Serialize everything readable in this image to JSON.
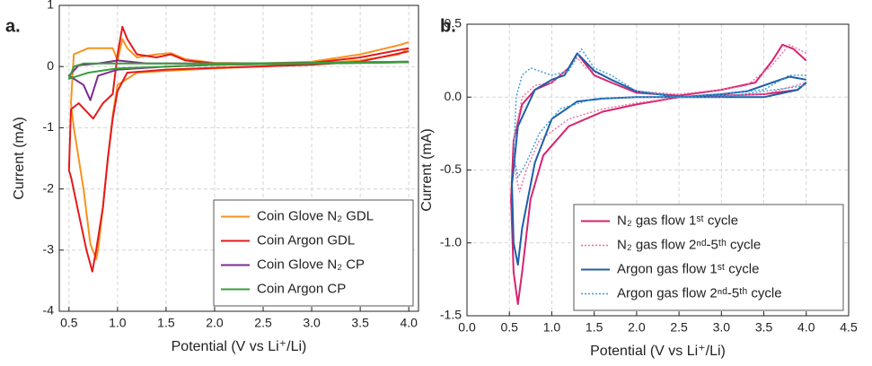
{
  "chart_data": [
    {
      "type": "line",
      "label": "a.",
      "xlabel": "Potential (V vs Li⁺/Li)",
      "ylabel": "Current (mA)",
      "xlim": [
        0.4,
        4.1
      ],
      "ylim": [
        -4,
        1
      ],
      "xticks": [
        0.5,
        {
          "value": 1,
          "label": "1.0"
        },
        1.5,
        {
          "value": 2,
          "label": "2.0"
        },
        2.5,
        {
          "value": 3,
          "label": "3.0"
        },
        3.5,
        {
          "value": 4,
          "label": "4.0"
        }
      ],
      "yticks": [
        1,
        0,
        -1,
        -2,
        -3,
        -4
      ],
      "grid": true,
      "legend": "lower right",
      "series": [
        {
          "name": "Coin Glove N₂ GDL",
          "color": "#f7931e",
          "x": [
            4.0,
            3.9,
            3.5,
            3.0,
            2.5,
            2.0,
            1.5,
            1.2,
            1.0,
            0.95,
            0.9,
            0.85,
            0.8,
            0.78,
            0.72,
            0.65,
            0.55,
            0.52,
            0.55,
            0.7,
            0.85,
            0.95,
            1.0,
            1.05,
            1.1,
            1.2,
            1.4,
            1.55,
            1.7,
            2.0,
            2.5,
            3.0,
            3.5,
            3.9,
            4.0
          ],
          "values": [
            0.3,
            0.2,
            0.1,
            0.05,
            0.0,
            -0.03,
            -0.07,
            -0.1,
            -0.3,
            -0.8,
            -1.5,
            -2.3,
            -3.0,
            -3.15,
            -2.9,
            -2.0,
            -1.0,
            -0.6,
            0.2,
            0.3,
            0.3,
            0.3,
            0.1,
            0.45,
            0.3,
            0.15,
            0.2,
            0.22,
            0.12,
            0.06,
            0.05,
            0.08,
            0.2,
            0.35,
            0.4
          ]
        },
        {
          "name": "Coin Argon  GDL",
          "color": "#e31a1c",
          "x": [
            4.0,
            3.5,
            3.0,
            2.0,
            1.5,
            1.1,
            1.0,
            0.95,
            0.9,
            0.85,
            0.78,
            0.74,
            0.68,
            0.6,
            0.52,
            0.5,
            0.52,
            0.6,
            0.75,
            0.85,
            0.95,
            1.0,
            1.05,
            1.1,
            1.2,
            1.4,
            1.55,
            1.7,
            2.0,
            3.0,
            3.5,
            4.0
          ],
          "values": [
            0.25,
            0.08,
            0.03,
            -0.02,
            -0.05,
            -0.1,
            -0.4,
            -0.85,
            -1.5,
            -2.3,
            -3.0,
            -3.35,
            -3.0,
            -2.4,
            -1.8,
            -1.7,
            -0.7,
            -0.6,
            -0.85,
            -0.6,
            -0.45,
            0.2,
            0.65,
            0.45,
            0.2,
            0.15,
            0.2,
            0.1,
            0.05,
            0.06,
            0.15,
            0.3
          ]
        },
        {
          "name": "Coin Glove N₂ CP",
          "color": "#7b2d8e",
          "x": [
            4.0,
            3.0,
            2.0,
            1.5,
            1.0,
            0.8,
            0.72,
            0.65,
            0.5,
            0.6,
            0.8,
            1.0,
            1.3,
            2.0,
            3.0,
            4.0
          ],
          "values": [
            0.07,
            0.05,
            0.03,
            0.0,
            -0.05,
            -0.15,
            -0.55,
            -0.3,
            -0.15,
            0.02,
            0.05,
            0.1,
            0.05,
            0.05,
            0.06,
            0.08
          ]
        },
        {
          "name": "Coin Argon CP",
          "color": "#3b9c3b",
          "x": [
            4.0,
            3.0,
            2.0,
            1.0,
            0.7,
            0.6,
            0.5,
            0.55,
            0.65,
            1.0,
            2.0,
            3.0,
            4.0
          ],
          "values": [
            0.07,
            0.05,
            0.03,
            -0.03,
            -0.1,
            -0.15,
            -0.2,
            0.0,
            0.05,
            0.05,
            0.05,
            0.06,
            0.08
          ]
        }
      ]
    },
    {
      "type": "line",
      "label": "b.",
      "xlabel": "Potential (V vs Li⁺/Li)",
      "ylabel": "Current (mA)",
      "xlim": [
        0,
        4.5
      ],
      "ylim": [
        -1.5,
        0.5
      ],
      "xticks": [
        {
          "value": 0,
          "label": "0.0"
        },
        0.5,
        {
          "value": 1,
          "label": "1.0"
        },
        1.5,
        {
          "value": 2,
          "label": "2.0"
        },
        2.5,
        {
          "value": 3,
          "label": "3.0"
        },
        3.5,
        {
          "value": 4,
          "label": "4.0"
        },
        4.5
      ],
      "yticks": [
        {
          "value": -1.5,
          "label": "-1.5"
        },
        {
          "value": -1,
          "label": "-1.0"
        },
        -0.5,
        {
          "value": 0,
          "label": "0.0"
        },
        0.5
      ],
      "grid": true,
      "legend": "lower right",
      "series": [
        {
          "name": "N₂ gas flow 1ˢᵗ cycle",
          "color": "#d6246e",
          "dash": "solid",
          "x": [
            4.0,
            3.85,
            3.72,
            3.6,
            3.4,
            3.0,
            2.5,
            2.0,
            1.7,
            1.5,
            1.3,
            1.2,
            1.0,
            0.8,
            0.65,
            0.55,
            0.52,
            0.55,
            0.6,
            0.65,
            0.75,
            0.9,
            1.2,
            1.6,
            2.0,
            2.5,
            3.0,
            3.5,
            3.9,
            4.0
          ],
          "values": [
            0.25,
            0.33,
            0.36,
            0.25,
            0.1,
            0.05,
            0.01,
            0.03,
            0.1,
            0.15,
            0.3,
            0.2,
            0.1,
            0.05,
            -0.05,
            -0.3,
            -0.7,
            -1.2,
            -1.42,
            -1.2,
            -0.7,
            -0.4,
            -0.2,
            -0.1,
            -0.05,
            0.0,
            0.01,
            0.02,
            0.05,
            0.1
          ]
        },
        {
          "name": "N₂ gas flow 2ⁿᵈ-5ᵗʰ cycle",
          "color": "#ec6fa3",
          "dash": "dotted",
          "x": [
            4.0,
            3.8,
            3.6,
            3.3,
            3.0,
            2.5,
            2.0,
            1.7,
            1.4,
            1.3,
            1.2,
            1.0,
            0.8,
            0.65,
            0.55,
            0.58,
            0.62,
            0.7,
            0.85,
            1.2,
            1.6,
            2.0,
            2.5,
            3.0,
            3.5,
            4.0
          ],
          "values": [
            0.3,
            0.36,
            0.22,
            0.08,
            0.05,
            0.02,
            0.04,
            0.12,
            0.2,
            0.27,
            0.2,
            0.1,
            0.08,
            0.0,
            -0.3,
            -0.55,
            -0.65,
            -0.5,
            -0.3,
            -0.15,
            -0.08,
            -0.04,
            0.0,
            0.01,
            0.02,
            0.1
          ]
        },
        {
          "name": "Argon gas flow 1ˢᵗ cycle",
          "color": "#1f5fa8",
          "dash": "solid",
          "x": [
            4.0,
            3.8,
            3.6,
            3.3,
            3.0,
            2.5,
            2.0,
            1.7,
            1.5,
            1.3,
            1.15,
            1.0,
            0.8,
            0.6,
            0.53,
            0.55,
            0.6,
            0.65,
            0.8,
            1.0,
            1.3,
            1.6,
            2.0,
            3.0,
            3.5,
            3.9,
            4.0
          ],
          "values": [
            0.12,
            0.14,
            0.1,
            0.04,
            0.02,
            0.0,
            0.04,
            0.12,
            0.18,
            0.3,
            0.15,
            0.12,
            0.05,
            -0.2,
            -0.6,
            -1.0,
            -1.15,
            -0.9,
            -0.45,
            -0.15,
            -0.03,
            -0.01,
            0.0,
            0.0,
            0.0,
            0.05,
            0.1
          ]
        },
        {
          "name": "Argon gas flow 2ⁿᵈ-5ᵗʰ cycle",
          "color": "#3a9ad9",
          "dash": "dotted",
          "x": [
            4.0,
            3.8,
            3.5,
            3.0,
            2.5,
            2.0,
            1.7,
            1.5,
            1.35,
            1.2,
            1.0,
            0.75,
            0.65,
            0.58,
            0.55,
            0.6,
            0.7,
            0.85,
            1.1,
            1.5,
            2.0,
            3.0,
            4.0
          ],
          "values": [
            0.15,
            0.15,
            0.05,
            0.02,
            0.0,
            0.04,
            0.15,
            0.2,
            0.33,
            0.18,
            0.15,
            0.2,
            0.15,
            0.0,
            -0.4,
            -0.55,
            -0.45,
            -0.25,
            -0.08,
            -0.01,
            0.0,
            0.0,
            0.08
          ]
        }
      ]
    }
  ]
}
